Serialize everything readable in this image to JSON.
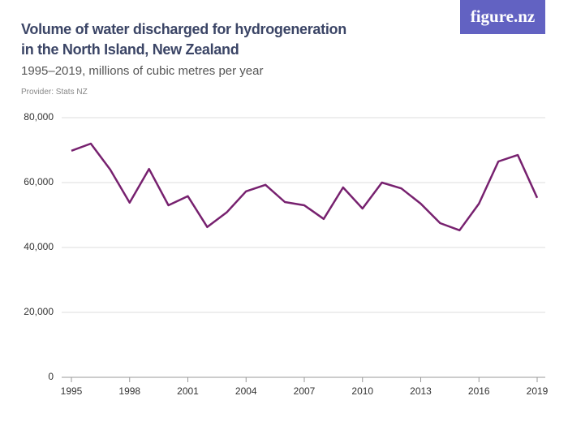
{
  "logo": "figure.nz",
  "chart_data": {
    "type": "line",
    "title": "Volume of water discharged for hydrogeneration in the North Island, New Zealand",
    "subtitle": "1995–2019, millions of cubic metres per year",
    "source": "Provider: Stats NZ",
    "x": [
      1995,
      1996,
      1997,
      1998,
      1999,
      2000,
      2001,
      2002,
      2003,
      2004,
      2005,
      2006,
      2007,
      2008,
      2009,
      2010,
      2011,
      2012,
      2013,
      2014,
      2015,
      2016,
      2017,
      2018,
      2019
    ],
    "values": [
      69800,
      72000,
      64000,
      53800,
      64200,
      53000,
      55800,
      46300,
      50800,
      57300,
      59300,
      54000,
      53000,
      48800,
      58500,
      52000,
      60000,
      58200,
      53500,
      47500,
      45300,
      53500,
      66500,
      68500,
      55300
    ],
    "color": "#77216f",
    "xlim": [
      1995,
      2019
    ],
    "xticks": [
      1995,
      1998,
      2001,
      2004,
      2007,
      2010,
      2013,
      2016,
      2019
    ],
    "ylim": [
      0,
      80000
    ],
    "yticks": [
      0,
      {
        "value": 20000,
        "label": "20,000"
      },
      {
        "value": 40000,
        "label": "40,000"
      },
      {
        "value": 60000,
        "label": "60,000"
      },
      {
        "value": 80000,
        "label": "80,000"
      }
    ],
    "grid": true
  }
}
